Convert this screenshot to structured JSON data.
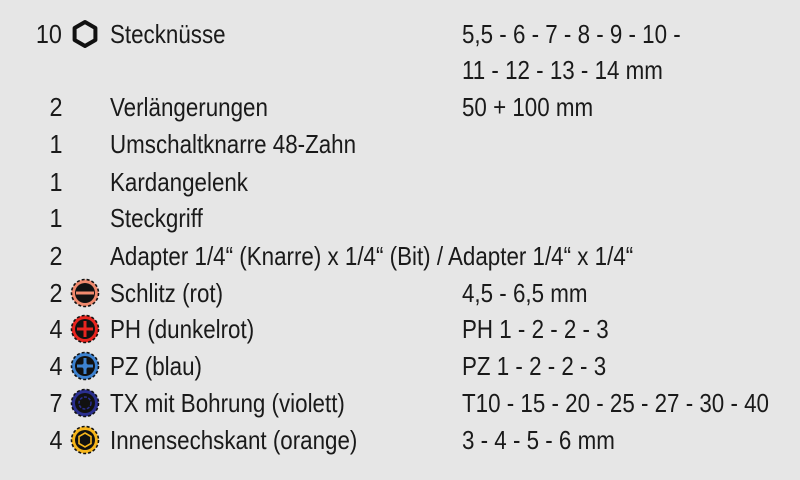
{
  "items": [
    {
      "qty": "10",
      "icon": "hex-socket-icon",
      "desc": "Stecknüsse",
      "spec": "5,5 - 6 - 7 - 8 - 9 - 10 -"
    },
    {
      "qty": "",
      "icon": "",
      "desc": "",
      "spec": "11 - 12 - 13 - 14 mm"
    },
    {
      "qty": "2",
      "icon": "",
      "desc": "Verlängerungen",
      "spec": "50 + 100 mm"
    },
    {
      "qty": "1",
      "icon": "",
      "desc": "Umschaltknarre 48-Zahn",
      "spec": ""
    },
    {
      "qty": "1",
      "icon": "",
      "desc": "Kardangelenk",
      "spec": ""
    },
    {
      "qty": "1",
      "icon": "",
      "desc": "Steckgriff",
      "spec": ""
    },
    {
      "qty": "2",
      "icon": "",
      "desc": "Adapter 1/4“ (Knarre) x 1/4“ (Bit) / Adapter 1/4“ x 1/4“",
      "spec": ""
    },
    {
      "qty": "2",
      "icon": "slotted-bit-icon",
      "desc": "Schlitz (rot)",
      "spec": "4,5 - 6,5 mm",
      "color": "#f08a6e"
    },
    {
      "qty": "4",
      "icon": "phillips-bit-icon",
      "desc": "PH (dunkelrot)",
      "spec": "PH 1 - 2 - 2 - 3",
      "color": "#e8251f"
    },
    {
      "qty": "4",
      "icon": "pozidriv-bit-icon",
      "desc": "PZ (blau)",
      "spec": "PZ 1 - 2 - 2 - 3",
      "color": "#3d82d0"
    },
    {
      "qty": "7",
      "icon": "torx-bit-icon",
      "desc": "TX mit Bohrung (violett)",
      "spec": "T10 - 15 - 20 - 25 - 27 - 30 - 40",
      "color": "#2a2f8f"
    },
    {
      "qty": "4",
      "icon": "hex-bit-icon",
      "desc": "Innensechskant (orange)",
      "spec": "3 - 4 - 5 - 6 mm",
      "color": "#f7b61b"
    }
  ]
}
